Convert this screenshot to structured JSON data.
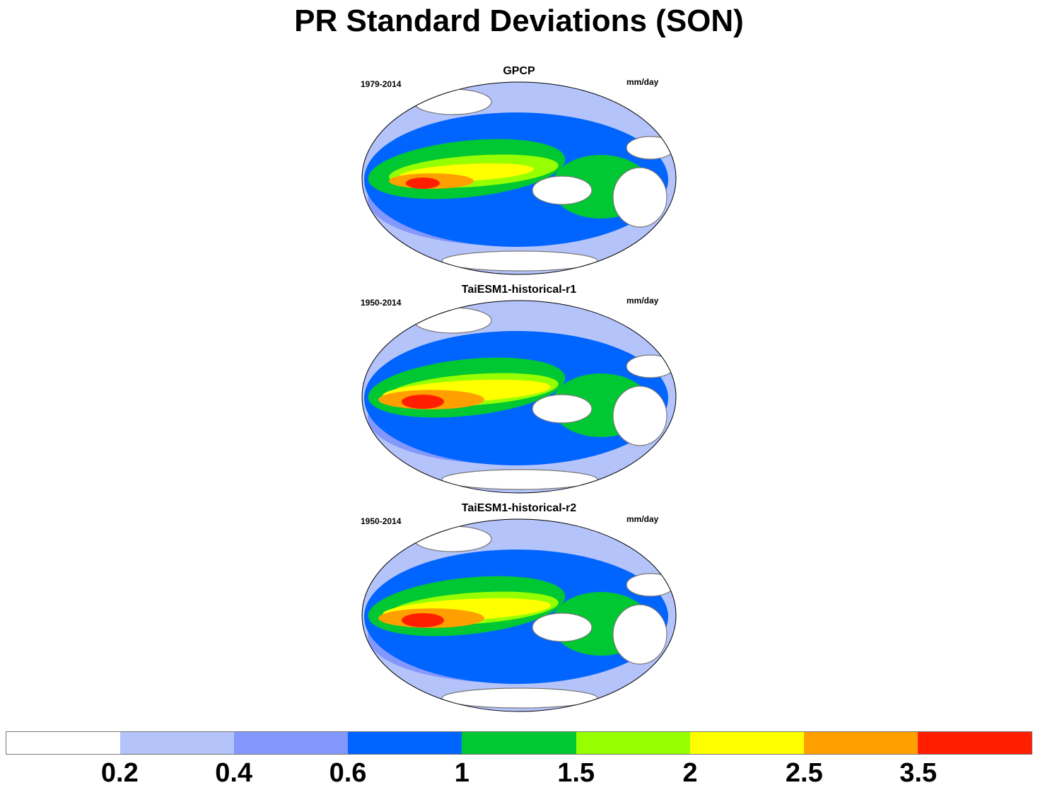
{
  "title": "PR Standard Deviations (SON)",
  "colors": [
    "#ffffff",
    "#b4c3fa",
    "#8397fc",
    "#0064ff",
    "#00c832",
    "#96ff00",
    "#ffff00",
    "#ffa000",
    "#ff1e00"
  ],
  "panels": [
    {
      "title": "GPCP",
      "period": "1979-2014",
      "units": "mm/day"
    },
    {
      "title": "TaiESM1-historical-r1",
      "period": "1950-2014",
      "units": "mm/day"
    },
    {
      "title": "TaiESM1-historical-r2",
      "period": "1950-2014",
      "units": "mm/day"
    }
  ],
  "colorbar": {
    "levels": [
      "0.2",
      "0.4",
      "0.6",
      "1",
      "1.5",
      "2",
      "2.5",
      "3.5"
    ]
  }
}
